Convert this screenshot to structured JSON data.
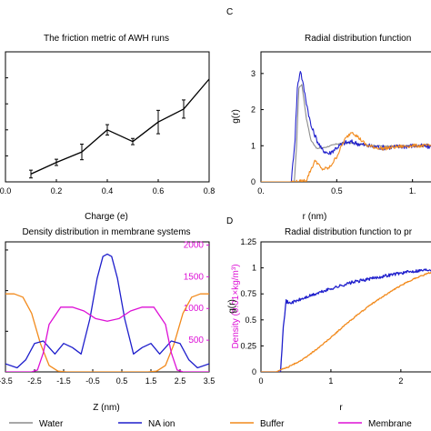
{
  "panel_letters": {
    "c": "C",
    "d": "D"
  },
  "legend": {
    "items": [
      {
        "label": "Water",
        "color": "#8c8c8c"
      },
      {
        "label": "NA ion",
        "color": "#1f1fcc"
      },
      {
        "label": "Buffer",
        "color": "#f28a1c"
      },
      {
        "label": "Membrane",
        "color": "#dd10d6"
      }
    ]
  },
  "chart_data": [
    {
      "id": "friction",
      "type": "line",
      "title": "The friction metric of AWH runs",
      "xlabel": "Charge (e)",
      "ylabel": "",
      "xlim": [
        0,
        0.8
      ],
      "ylim": [
        0,
        5
      ],
      "xticks": [
        "0.0",
        "0.2",
        "0.4",
        "0.6",
        "0.8"
      ],
      "x": [
        0.1,
        0.2,
        0.3,
        0.4,
        0.5,
        0.6,
        0.7,
        0.8
      ],
      "series": [
        {
          "values": [
            0.3,
            0.75,
            1.15,
            2.0,
            1.55,
            2.3,
            2.8,
            3.95
          ],
          "errors": [
            0.15,
            0.12,
            0.3,
            0.2,
            0.12,
            0.45,
            0.35,
            0
          ]
        }
      ]
    },
    {
      "id": "rdf-c",
      "type": "line",
      "title": "Radial distribution function",
      "xlabel": "r (nm)",
      "ylabel": "g(r)",
      "xlim": [
        0,
        1.2
      ],
      "ylim": [
        0,
        3.6
      ],
      "xticks": [
        "0.",
        "0.5",
        "1."
      ],
      "yticks": [
        "0",
        "1",
        "2",
        "3"
      ],
      "series": [
        {
          "name": "Water",
          "x": [
            0,
            0.22,
            0.235,
            0.25,
            0.27,
            0.3,
            0.33,
            0.37,
            0.42,
            0.5,
            0.55,
            0.6,
            0.7,
            0.8,
            0.9,
            1.0,
            1.1,
            1.2
          ],
          "values": [
            0,
            0,
            1.0,
            2.6,
            2.7,
            1.75,
            1.15,
            0.92,
            0.95,
            1.05,
            1.08,
            1.07,
            1.02,
            0.99,
            1.0,
            1.0,
            1.0,
            1.0
          ]
        },
        {
          "name": "NA ion",
          "x": [
            0,
            0.2,
            0.225,
            0.24,
            0.26,
            0.3,
            0.33,
            0.37,
            0.4,
            0.45,
            0.5,
            0.55,
            0.6,
            0.7,
            0.8,
            0.9,
            1.0,
            1.1,
            1.2
          ],
          "values": [
            0,
            0,
            1.2,
            2.6,
            3.1,
            2.2,
            1.55,
            1.15,
            0.9,
            0.78,
            0.95,
            1.08,
            1.1,
            1.0,
            0.95,
            0.97,
            1.0,
            0.98,
            0.99
          ]
        },
        {
          "name": "Buffer",
          "x": [
            0,
            0.25,
            0.3,
            0.33,
            0.36,
            0.4,
            0.45,
            0.5,
            0.55,
            0.6,
            0.65,
            0.7,
            0.8,
            0.9,
            1.0,
            1.1,
            1.2
          ],
          "values": [
            0,
            0,
            0.05,
            0.35,
            0.6,
            0.35,
            0.38,
            0.7,
            1.15,
            1.4,
            1.2,
            1.0,
            0.92,
            0.97,
            1.0,
            1.0,
            1.0
          ]
        }
      ]
    },
    {
      "id": "density",
      "type": "line",
      "title": "Density distribution in membrane systems",
      "xlabel": "Z (nm)",
      "ylabel": "",
      "y2label": "Density (0.01×kg/m³)",
      "xlim": [
        -3.5,
        3.5
      ],
      "xticks": [
        "-3.5",
        "-2.5",
        "-1.5",
        "-0.5",
        "0.5",
        "1.5",
        "2.5",
        "3.5"
      ],
      "ylim": [
        0,
        1.6
      ],
      "y2lim": [
        0,
        2050
      ],
      "y2ticks": [
        "500",
        "1000",
        "1500",
        "2000"
      ],
      "series": [
        {
          "name": "Buffer",
          "axis": "left",
          "x": [
            -3.5,
            -3.2,
            -2.9,
            -2.6,
            -2.3,
            -2.0,
            -1.7,
            -1.4,
            -1.2,
            -1.0,
            1.0,
            1.2,
            1.4,
            1.7,
            2.0,
            2.3,
            2.6,
            2.9,
            3.2,
            3.5
          ],
          "values": [
            0.96,
            0.96,
            0.92,
            0.72,
            0.35,
            0.08,
            0.01,
            0,
            0,
            0,
            0,
            0,
            0,
            0.01,
            0.08,
            0.35,
            0.72,
            0.92,
            0.96,
            0.96
          ]
        },
        {
          "name": "NA ion",
          "axis": "left",
          "x": [
            -3.5,
            -3.1,
            -2.8,
            -2.5,
            -2.2,
            -2.0,
            -1.8,
            -1.5,
            -1.2,
            -0.9,
            -0.6,
            -0.35,
            -0.15,
            0,
            0.15,
            0.35,
            0.6,
            0.9,
            1.2,
            1.5,
            1.8,
            2.0,
            2.2,
            2.5,
            2.8,
            3.1,
            3.5
          ],
          "values": [
            0.1,
            0.05,
            0.15,
            0.35,
            0.38,
            0.3,
            0.22,
            0.35,
            0.3,
            0.22,
            0.65,
            1.15,
            1.42,
            1.45,
            1.42,
            1.15,
            0.65,
            0.22,
            0.3,
            0.35,
            0.22,
            0.3,
            0.38,
            0.35,
            0.15,
            0.05,
            0.1
          ]
        },
        {
          "name": "Membrane",
          "axis": "right",
          "x": [
            -3.5,
            -2.6,
            -2.4,
            -2.2,
            -2.0,
            -1.6,
            -1.2,
            -0.8,
            -0.4,
            0,
            0.4,
            0.8,
            1.2,
            1.6,
            2.0,
            2.2,
            2.4,
            2.6,
            3.5
          ],
          "values": [
            0,
            0,
            30,
            300,
            750,
            1020,
            1020,
            960,
            840,
            800,
            840,
            960,
            1020,
            1020,
            750,
            300,
            30,
            0,
            0
          ]
        }
      ]
    },
    {
      "id": "rdf-d",
      "type": "line",
      "title": "Radial distribution function to pr",
      "xlabel": "r",
      "ylabel": "g(r)",
      "xlim": [
        0,
        2.6
      ],
      "ylim": [
        0,
        1.25
      ],
      "xticks": [
        "0",
        "1",
        "2"
      ],
      "yticks": [
        "0",
        "0.25",
        "0.5",
        "0.75",
        "1",
        "1.25"
      ],
      "series": [
        {
          "name": "NA ion",
          "x": [
            0,
            0.28,
            0.32,
            0.36,
            0.4,
            0.5,
            0.7,
            1.0,
            1.3,
            1.6,
            1.9,
            2.2,
            2.5,
            2.6
          ],
          "values": [
            0,
            0,
            0.45,
            0.68,
            0.66,
            0.68,
            0.73,
            0.8,
            0.86,
            0.9,
            0.94,
            0.97,
            0.99,
            0.99
          ]
        },
        {
          "name": "Buffer",
          "x": [
            0,
            0.22,
            0.28,
            0.4,
            0.6,
            0.8,
            1.0,
            1.2,
            1.4,
            1.6,
            1.8,
            2.0,
            2.2,
            2.4,
            2.6
          ],
          "values": [
            0,
            0,
            0.02,
            0.05,
            0.12,
            0.22,
            0.33,
            0.45,
            0.56,
            0.66,
            0.75,
            0.83,
            0.9,
            0.95,
            0.97
          ]
        }
      ]
    }
  ]
}
